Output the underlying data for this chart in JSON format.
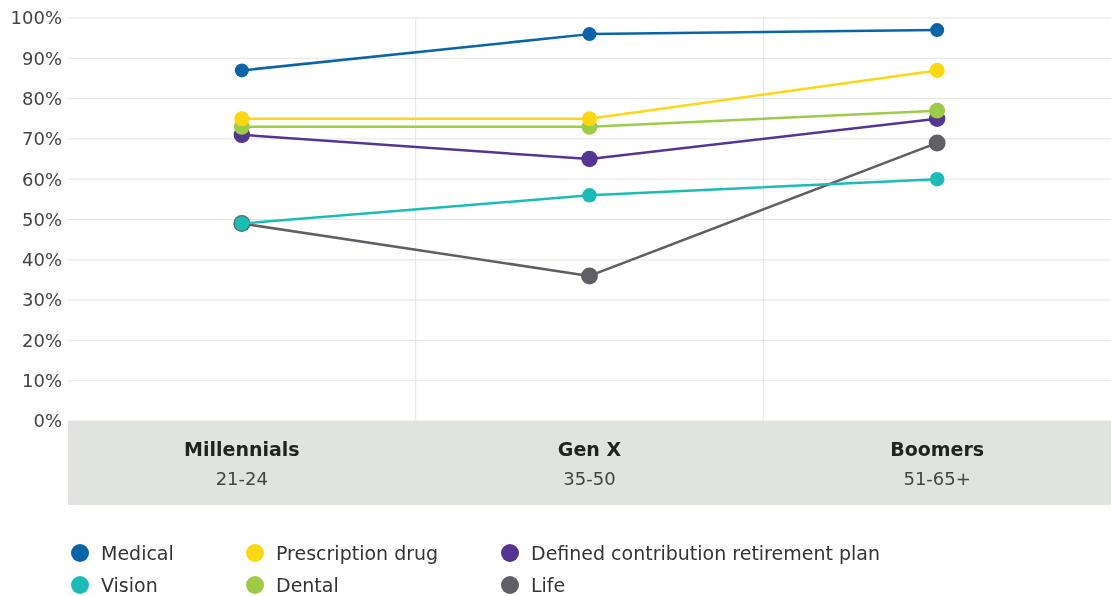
{
  "chart_data": {
    "type": "line",
    "categories": [
      "Millennials\n21-24",
      "Gen X\n35-50",
      "Boomers\n51-65+"
    ],
    "series": [
      {
        "name": "Medical",
        "color": "#0a64a8",
        "values": [
          87,
          96,
          97
        ]
      },
      {
        "name": "Vision",
        "color": "#1bbcb5",
        "values": [
          49,
          56,
          60
        ]
      },
      {
        "name": "Prescription drug",
        "color": "#fcd713",
        "values": [
          75,
          75,
          87
        ]
      },
      {
        "name": "Dental",
        "color": "#9dcb48",
        "values": [
          73,
          73,
          77
        ]
      },
      {
        "name": "Defined contribution retirement plan",
        "color": "#553592",
        "values": [
          71,
          65,
          75
        ]
      },
      {
        "name": "Life",
        "color": "#5f6065",
        "values": [
          49,
          36,
          69
        ]
      }
    ],
    "ylim": [
      0,
      100
    ],
    "yticks": [
      {
        "value": 0,
        "label": "0%"
      },
      {
        "value": 10,
        "label": "10%"
      },
      {
        "value": 20,
        "label": "20%"
      },
      {
        "value": 30,
        "label": "30%"
      },
      {
        "value": 40,
        "label": "40%"
      },
      {
        "value": 50,
        "label": "50%"
      },
      {
        "value": 60,
        "label": "60%"
      },
      {
        "value": 70,
        "label": "70%"
      },
      {
        "value": 80,
        "label": "80%"
      },
      {
        "value": 90,
        "label": "90%"
      },
      {
        "value": 100,
        "label": "100%"
      }
    ],
    "grid": true,
    "legend": "bottom left",
    "marker": "circle",
    "line_style": "solid"
  }
}
